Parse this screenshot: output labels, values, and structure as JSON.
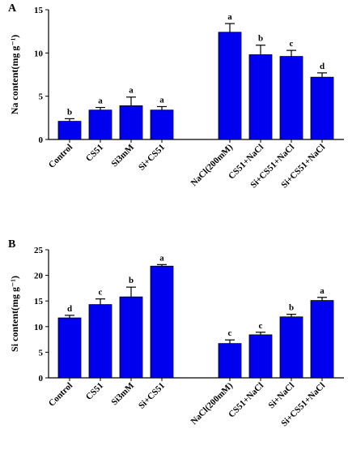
{
  "chart_data": [
    {
      "panel": "A",
      "type": "bar",
      "ylabel": "Na content(mg g⁻¹)",
      "ylim": [
        0,
        15
      ],
      "yticks": [
        0,
        5,
        10,
        15
      ],
      "bar_color": "#0000ee",
      "groups": [
        {
          "categories": [
            "Control",
            "CS51",
            "Si3mM",
            "Si+CS51"
          ],
          "values": [
            2.1,
            3.4,
            3.9,
            3.4
          ],
          "errors": [
            0.3,
            0.3,
            1.0,
            0.4
          ],
          "letters": [
            "b",
            "a",
            "a",
            "a"
          ]
        },
        {
          "categories": [
            "NaCl(200mM)",
            "CS51+NaCl",
            "Si+CS51+NaCl",
            "Si+CS51+NaCl"
          ],
          "values": [
            12.4,
            9.8,
            9.6,
            7.2
          ],
          "errors": [
            1.0,
            1.1,
            0.7,
            0.5
          ],
          "letters": [
            "a",
            "b",
            "c",
            "d"
          ]
        }
      ]
    },
    {
      "panel": "B",
      "type": "bar",
      "ylabel": "Si content(mg g⁻¹)",
      "ylim": [
        0,
        25
      ],
      "yticks": [
        0,
        5,
        10,
        15,
        20,
        25
      ],
      "bar_color": "#0000ee",
      "groups": [
        {
          "categories": [
            "Control",
            "CS51",
            "Si3mM",
            "Si+CS51"
          ],
          "values": [
            11.7,
            14.3,
            15.8,
            21.8
          ],
          "errors": [
            0.5,
            1.1,
            1.9,
            0.3
          ],
          "letters": [
            "d",
            "c",
            "b",
            "a"
          ]
        },
        {
          "categories": [
            "NaCl(200mM)",
            "CS51+NaCl",
            "Si+NaCl",
            "Si+CS51+NaCl"
          ],
          "values": [
            6.7,
            8.4,
            11.9,
            15.1
          ],
          "errors": [
            0.7,
            0.5,
            0.5,
            0.6
          ],
          "letters": [
            "c",
            "c",
            "b",
            "a"
          ]
        }
      ]
    }
  ]
}
